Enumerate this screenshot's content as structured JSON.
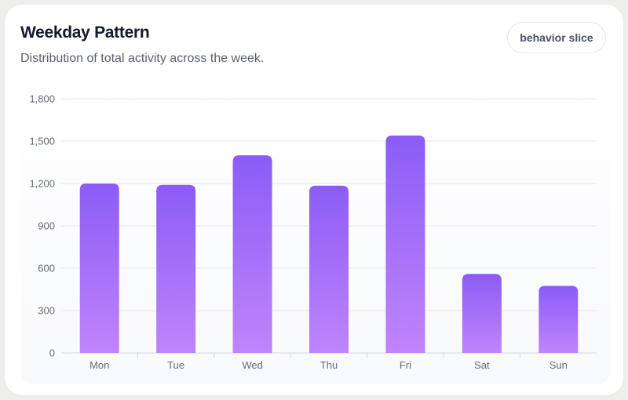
{
  "header": {
    "title": "Weekday Pattern",
    "subtitle": "Distribution of total activity across the week.",
    "badge_label": "behavior slice"
  },
  "colors": {
    "bar_top": "#8b5cf6",
    "bar_bottom": "#c084fc",
    "grid": "#e6e8ee",
    "axis_text": "#666b78"
  },
  "chart_data": {
    "type": "bar",
    "categories": [
      "Mon",
      "Tue",
      "Wed",
      "Thu",
      "Fri",
      "Sat",
      "Sun"
    ],
    "values": [
      1200,
      1190,
      1400,
      1185,
      1540,
      560,
      475
    ],
    "ylim": [
      0,
      1800
    ],
    "yticks": [
      0,
      300,
      600,
      900,
      1200,
      1500,
      1800
    ],
    "ytick_labels": [
      "0",
      "300",
      "600",
      "900",
      "1,200",
      "1,500",
      "1,800"
    ],
    "grid": true,
    "legend": "none"
  }
}
